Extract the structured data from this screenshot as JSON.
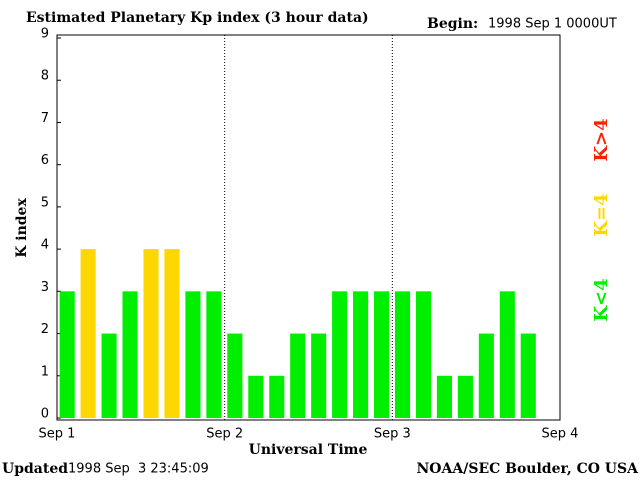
{
  "chart_data": {
    "type": "bar",
    "title": "Estimated Planetary Kp index (3 hour data)",
    "begin_label": "Begin:",
    "begin": "1998 Sep 1 0000UT",
    "ylabel": "K index",
    "xlabel": "Universal Time",
    "updated_label": "Updated",
    "updated": "1998 Sep  3 23:45:09",
    "source": "NOAA/SEC Boulder, CO USA",
    "x": [
      0,
      0.125,
      0.25,
      0.375,
      0.5,
      0.625,
      0.75,
      0.875,
      1,
      1.125,
      1.25,
      1.375,
      1.5,
      1.625,
      1.75,
      1.875,
      2,
      2.125,
      2.25,
      2.375,
      2.5,
      2.625,
      2.75
    ],
    "values": [
      3,
      4,
      2,
      3,
      4,
      4,
      3,
      3,
      2,
      1,
      1,
      2,
      2,
      3,
      3,
      3,
      3,
      3,
      1,
      1,
      2,
      3,
      2
    ],
    "colors": [
      "#00ee00",
      "#ffd700",
      "#00ee00",
      "#00ee00",
      "#ffd700",
      "#ffd700",
      "#00ee00",
      "#00ee00",
      "#00ee00",
      "#00ee00",
      "#00ee00",
      "#00ee00",
      "#00ee00",
      "#00ee00",
      "#00ee00",
      "#00ee00",
      "#00ee00",
      "#00ee00",
      "#00ee00",
      "#00ee00",
      "#00ee00",
      "#00ee00",
      "#00ee00"
    ],
    "bar_width": 0.09,
    "xlim": [
      0,
      3
    ],
    "xticks": [
      {
        "value": 0,
        "label": "Sep 1"
      },
      {
        "value": 1,
        "label": "Sep 2"
      },
      {
        "value": 2,
        "label": "Sep 3"
      },
      {
        "value": 3,
        "label": "Sep 4"
      }
    ],
    "ylim": [
      0,
      9
    ],
    "yticks": [
      0,
      1,
      2,
      3,
      4,
      5,
      6,
      7,
      8,
      9
    ],
    "legend": [
      {
        "label": "K<4",
        "color": "#00ee00"
      },
      {
        "label": "K=4",
        "color": "#ffd700"
      },
      {
        "label": "K>4",
        "color": "#ff2000"
      }
    ]
  }
}
